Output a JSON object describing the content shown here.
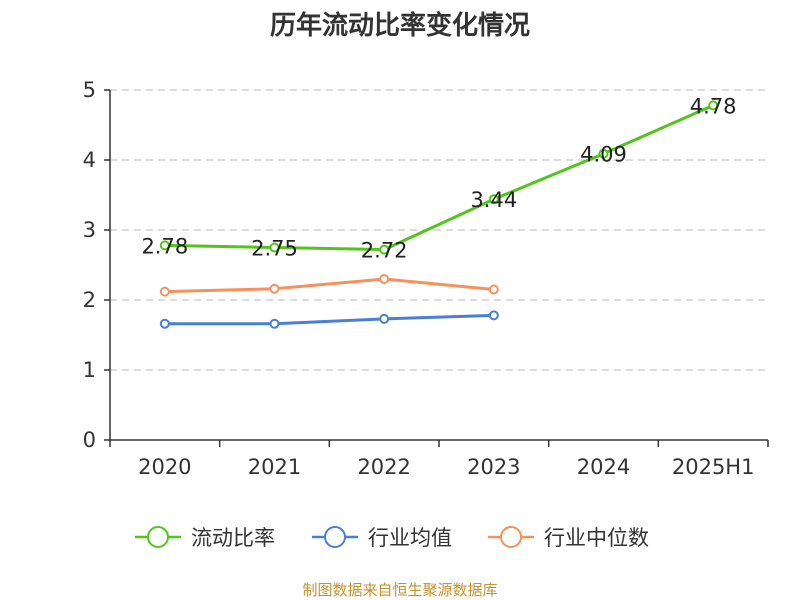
{
  "chart_data": {
    "type": "line",
    "title": "历年流动比率变化情况",
    "categories": [
      "2020",
      "2021",
      "2022",
      "2023",
      "2024",
      "2025H1"
    ],
    "ylim": [
      0,
      5
    ],
    "yticks": [
      "0",
      "1",
      "2",
      "3",
      "4",
      "5"
    ],
    "grid": true,
    "legend_position": "bottom",
    "series": [
      {
        "name": "流动比率",
        "color": "#52c41a",
        "values": [
          2.78,
          2.75,
          2.72,
          3.44,
          4.09,
          4.78
        ],
        "labels": [
          "2.78",
          "2.75",
          "2.72",
          "3.44",
          "4.09",
          "4.78"
        ]
      },
      {
        "name": "行业均值",
        "color": "#4a7fd8",
        "values": [
          1.66,
          1.66,
          1.73,
          1.78,
          null,
          null
        ]
      },
      {
        "name": "行业中位数",
        "color": "#f5915c",
        "values": [
          2.12,
          2.16,
          2.3,
          2.15,
          null,
          null
        ]
      }
    ]
  },
  "source": "制图数据来自恒生聚源数据库"
}
